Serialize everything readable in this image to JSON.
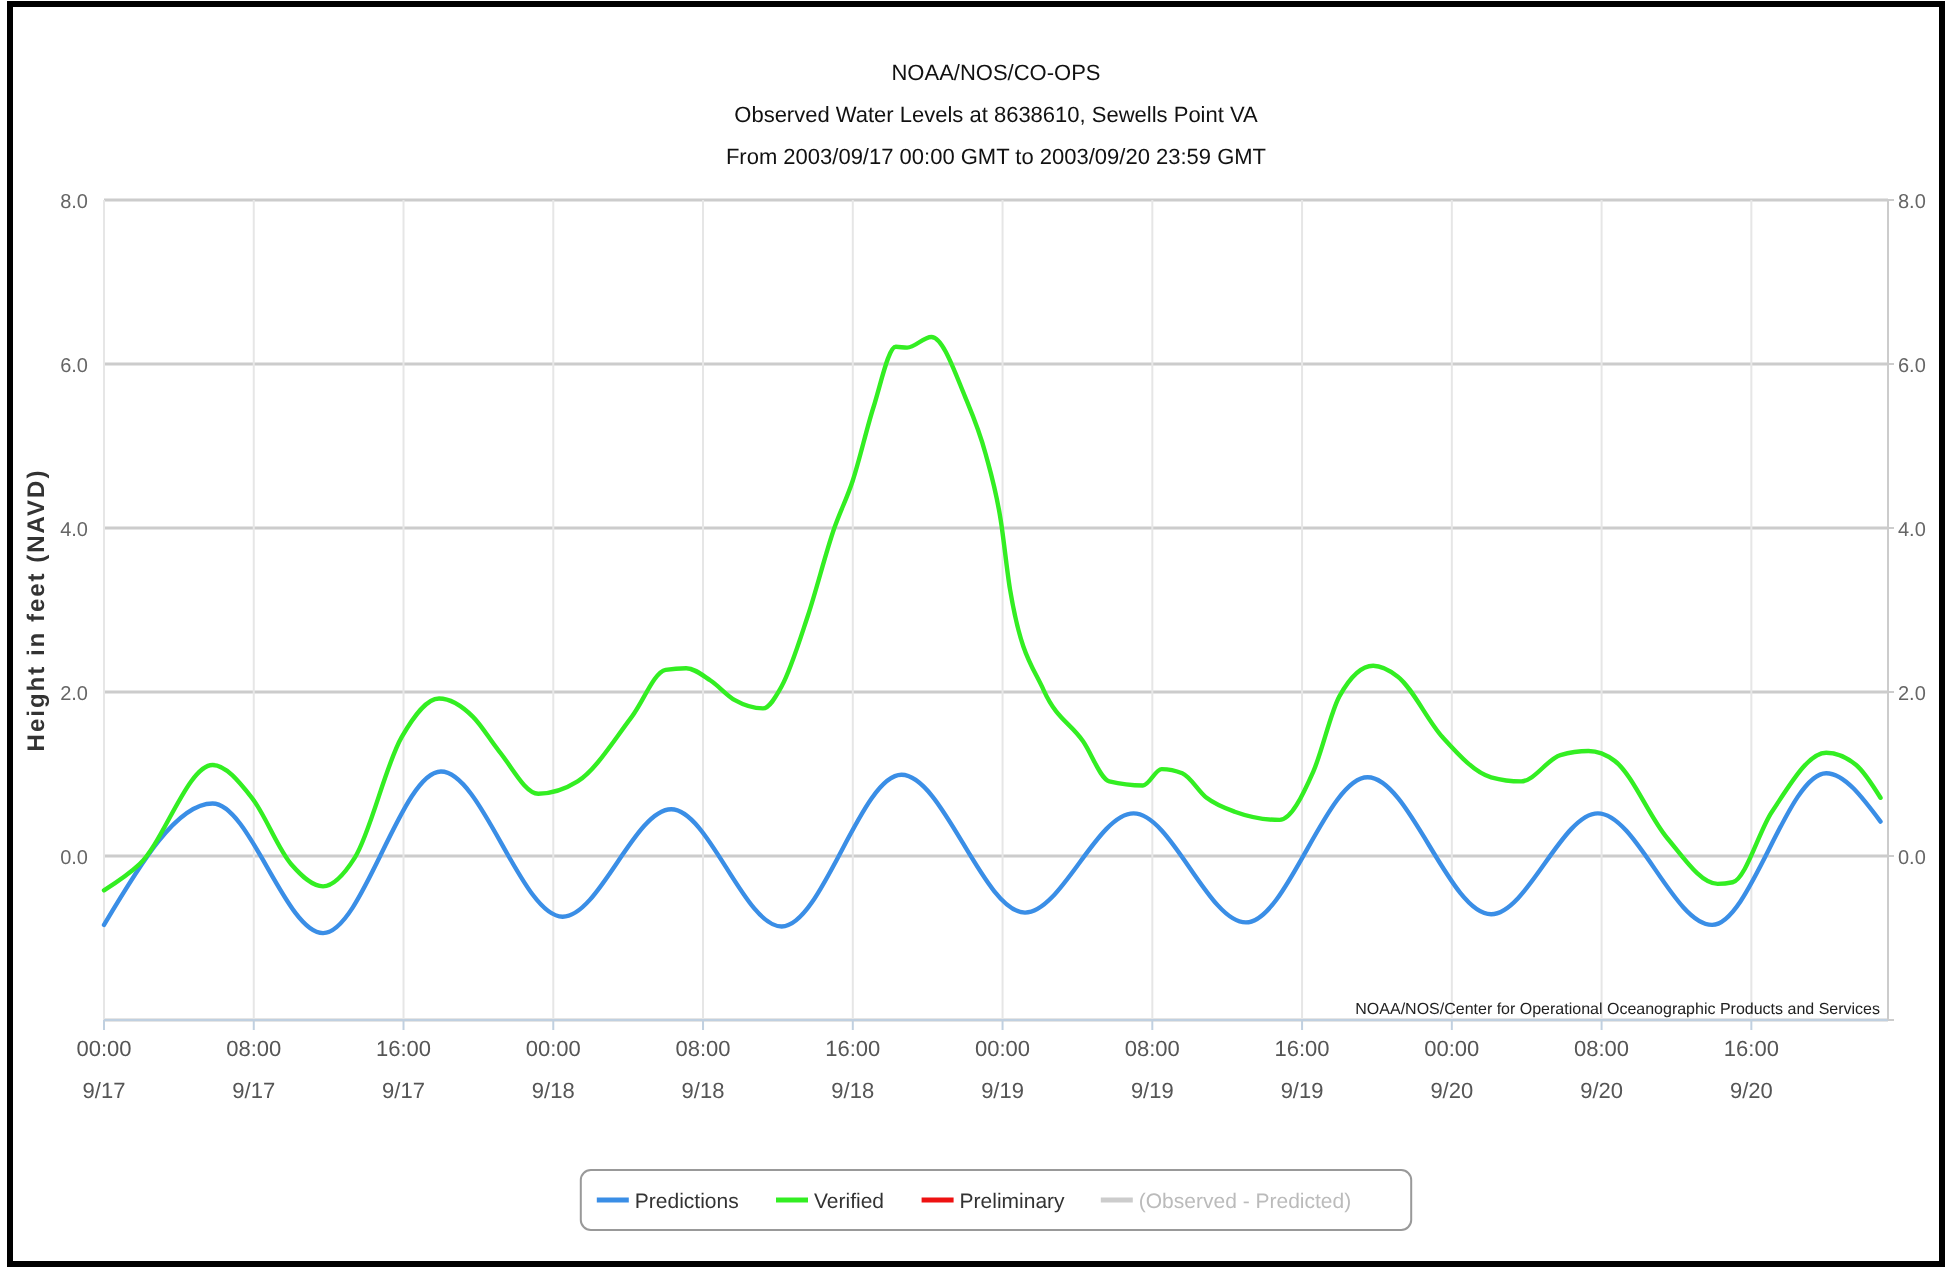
{
  "chart_data": {
    "type": "line",
    "title": "NOAA/NOS/CO-OPS",
    "subtitle": "Observed Water Levels at 8638610, Sewells Point VA\nFrom 2003/09/17 00:00 GMT to 2003/09/20 23:59 GMT",
    "ylabel": "Height in feet (NAVD)",
    "annotations": [
      "NOAA/NOS/Center for Operational Oceanographic Products and Services"
    ],
    "xlim": [
      "2003-09-17T00:00",
      "2003-09-20T23:18"
    ],
    "xticks": [
      {
        "value": "2003-09-17T00:00",
        "label": "00:00\n9/17"
      },
      {
        "value": "2003-09-17T08:00",
        "label": "08:00\n9/17"
      },
      {
        "value": "2003-09-17T16:00",
        "label": "16:00\n9/17"
      },
      {
        "value": "2003-09-18T00:00",
        "label": "00:00\n9/18"
      },
      {
        "value": "2003-09-18T08:00",
        "label": "08:00\n9/18"
      },
      {
        "value": "2003-09-18T16:00",
        "label": "16:00\n9/18"
      },
      {
        "value": "2003-09-19T00:00",
        "label": "00:00\n9/19"
      },
      {
        "value": "2003-09-19T08:00",
        "label": "08:00\n9/19"
      },
      {
        "value": "2003-09-19T16:00",
        "label": "16:00\n9/19"
      },
      {
        "value": "2003-09-20T00:00",
        "label": "00:00\n9/20"
      },
      {
        "value": "2003-09-20T08:00",
        "label": "08:00\n9/20"
      },
      {
        "value": "2003-09-20T16:00",
        "label": "16:00\n9/20"
      }
    ],
    "ylim": [
      -2,
      8
    ],
    "yticks": [
      {
        "value": -2,
        "label": null
      },
      {
        "value": 0,
        "label": "0.0"
      },
      {
        "value": 2,
        "label": "2.0"
      },
      {
        "value": 4,
        "label": "4.0"
      },
      {
        "value": 6,
        "label": "6.0"
      },
      {
        "value": 8,
        "label": "8.0"
      }
    ],
    "y2lim": [
      -2,
      8
    ],
    "y2ticks": [
      {
        "value": -2,
        "label": null
      },
      {
        "value": 0,
        "label": "0.0"
      },
      {
        "value": 2,
        "label": "2.0"
      },
      {
        "value": 4,
        "label": "4.0"
      },
      {
        "value": 6,
        "label": "6.0"
      },
      {
        "value": 8,
        "label": "8.0"
      }
    ],
    "grid": true,
    "legend": "bottom",
    "line_style": "solid",
    "marker": "none",
    "series": [
      {
        "name": "Predictions",
        "color": "#3a8ee6",
        "x": [
          "2003-09-17T00:00",
          "2003-09-17T05:48",
          "2003-09-17T11:42",
          "2003-09-17T18:00",
          "2003-09-18T00:30",
          "2003-09-18T06:18",
          "2003-09-18T12:12",
          "2003-09-18T18:36",
          "2003-09-19T01:12",
          "2003-09-19T07:00",
          "2003-09-19T13:00",
          "2003-09-19T19:30",
          "2003-09-20T02:06",
          "2003-09-20T07:48",
          "2003-09-20T13:54",
          "2003-09-20T20:00",
          "2003-09-20T22:54"
        ],
        "values": [
          -0.84,
          0.64,
          -0.94,
          1.03,
          -0.74,
          0.57,
          -0.86,
          0.99,
          -0.69,
          0.52,
          -0.81,
          0.96,
          -0.71,
          0.52,
          -0.84,
          1.01,
          0.42
        ]
      },
      {
        "name": "Verified",
        "color": "#33ee22",
        "x": [
          "2003-09-17T00:00",
          "2003-09-17T01:54",
          "2003-09-17T05:48",
          "2003-09-17T07:54",
          "2003-09-17T10:00",
          "2003-09-17T11:42",
          "2003-09-17T13:24",
          "2003-09-17T15:54",
          "2003-09-17T17:54",
          "2003-09-17T19:42",
          "2003-09-17T21:06",
          "2003-09-17T23:12",
          "2003-09-18T01:18",
          "2003-09-18T04:12",
          "2003-09-18T06:00",
          "2003-09-18T07:06",
          "2003-09-18T08:24",
          "2003-09-18T09:42",
          "2003-09-18T11:12",
          "2003-09-18T12:12",
          "2003-09-18T13:36",
          "2003-09-18T15:00",
          "2003-09-18T16:00",
          "2003-09-18T17:06",
          "2003-09-18T18:18",
          "2003-09-18T18:54",
          "2003-09-18T20:12",
          "2003-09-18T22:00",
          "2003-09-18T23:06",
          "2003-09-18T23:54",
          "2003-09-19T00:24",
          "2003-09-19T02:12",
          "2003-09-19T04:18",
          "2003-09-19T05:42",
          "2003-09-19T07:30",
          "2003-09-19T08:30",
          "2003-09-19T09:36",
          "2003-09-19T10:54",
          "2003-09-19T12:24",
          "2003-09-19T14:48",
          "2003-09-19T16:36",
          "2003-09-19T18:00",
          "2003-09-19T19:48",
          "2003-09-19T21:06",
          "2003-09-19T23:30",
          "2003-09-20T02:06",
          "2003-09-20T03:42",
          "2003-09-20T05:48",
          "2003-09-20T07:18",
          "2003-09-20T08:42",
          "2003-09-20T11:30",
          "2003-09-20T14:12",
          "2003-09-20T15:00",
          "2003-09-20T17:06",
          "2003-09-20T20:00",
          "2003-09-20T21:36",
          "2003-09-20T22:54"
        ],
        "values": [
          -0.42,
          -0.1,
          1.11,
          0.71,
          -0.1,
          -0.37,
          -0.02,
          1.45,
          1.92,
          1.7,
          1.28,
          0.76,
          0.91,
          1.7,
          2.27,
          2.29,
          2.14,
          1.9,
          1.8,
          2.07,
          2.93,
          3.99,
          4.58,
          5.47,
          6.21,
          6.2,
          6.33,
          5.6,
          4.9,
          4.1,
          3.25,
          2.02,
          1.4,
          0.91,
          0.86,
          1.06,
          1.01,
          0.71,
          0.54,
          0.44,
          1.03,
          1.95,
          2.32,
          2.19,
          1.45,
          0.96,
          0.91,
          1.23,
          1.28,
          1.16,
          0.22,
          -0.34,
          -0.32,
          0.54,
          1.26,
          1.11,
          0.71
        ]
      },
      {
        "name": "Preliminary",
        "color": "#ee1111"
      },
      {
        "name": "(Observed - Predicted)",
        "color": "#cccccc"
      }
    ]
  }
}
